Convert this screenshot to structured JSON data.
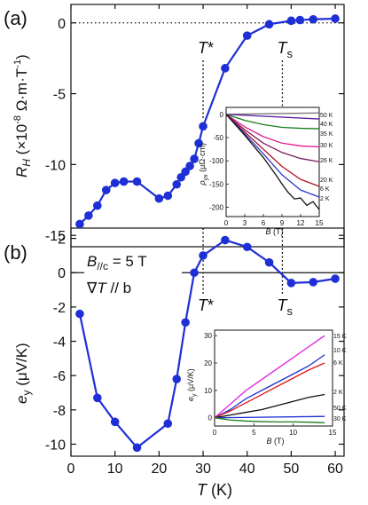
{
  "chart_data": [
    {
      "panel_label": "(a)",
      "type": "line",
      "x": [
        2,
        4,
        6,
        8,
        10,
        12,
        15,
        20,
        22,
        24,
        25,
        26,
        27,
        28,
        29,
        30,
        35,
        40,
        45,
        50,
        52,
        55,
        60
      ],
      "y": [
        -14.2,
        -13.6,
        -12.9,
        -11.8,
        -11.3,
        -11.2,
        -11.2,
        -12.4,
        -12.2,
        -11.4,
        -10.9,
        -10.5,
        -10.1,
        -9.6,
        -8.5,
        -7.3,
        -3.2,
        -0.9,
        -0.1,
        0.15,
        0.2,
        0.25,
        0.3
      ],
      "xlim": [
        0,
        62
      ],
      "ylim": [
        -15.8,
        1.3
      ],
      "yticks": [
        -15,
        -10,
        -5,
        0
      ],
      "ylabel": "R_H (×10^-8 Ω·m·T^-1)",
      "zero_line": "dotted",
      "markers": [
        {
          "label": "T*",
          "x": 30
        },
        {
          "label": "T_s",
          "x": 48
        }
      ],
      "inset": {
        "type": "line",
        "xlabel": "B (T)",
        "ylabel": "ρ_yx (μΩ·cm)",
        "xlim": [
          0,
          15
        ],
        "ylim": [
          -220,
          15
        ],
        "xticks": [
          0,
          3,
          6,
          9,
          12,
          15
        ],
        "yticks": [
          0,
          -50,
          -100,
          -150,
          -200
        ],
        "series": [
          {
            "name": "50 K",
            "color": "#6e6e6e",
            "x": [
              0,
              15
            ],
            "y": [
              0,
              3
            ]
          },
          {
            "name": "40 K",
            "color": "#5a1f9c",
            "x": [
              0,
              15
            ],
            "y": [
              0,
              -10
            ]
          },
          {
            "name": "35 K",
            "color": "#1a7a1a",
            "x": [
              0,
              3,
              6,
              9,
              12,
              15
            ],
            "y": [
              0,
              -13,
              -22,
              -28,
              -30,
              -31
            ]
          },
          {
            "name": "30 K",
            "color": "#e0188c",
            "x": [
              0,
              3,
              6,
              9,
              12,
              15
            ],
            "y": [
              0,
              -27,
              -48,
              -62,
              -68,
              -70
            ]
          },
          {
            "name": "26 K",
            "color": "#7a1c5e",
            "x": [
              0,
              3,
              6,
              9,
              12,
              15
            ],
            "y": [
              0,
              -33,
              -62,
              -82,
              -95,
              -102
            ]
          },
          {
            "name": "20 K",
            "color": "#b0132a",
            "x": [
              0,
              3,
              6,
              9,
              12,
              15
            ],
            "y": [
              0,
              -38,
              -75,
              -112,
              -140,
              -155
            ]
          },
          {
            "name": "6 K",
            "color": "#2c39c8",
            "x": [
              0,
              3,
              6,
              9,
              12,
              15
            ],
            "y": [
              0,
              -42,
              -85,
              -130,
              -163,
              -178
            ]
          },
          {
            "name": "2 K",
            "color": "#111111",
            "x": [
              0,
              3,
              6,
              8,
              9,
              10,
              11,
              12,
              13,
              14,
              15
            ],
            "y": [
              0,
              -45,
              -93,
              -130,
              -150,
              -168,
              -182,
              -180,
              -196,
              -188,
              -205
            ]
          }
        ]
      }
    },
    {
      "panel_label": "(b)",
      "type": "line",
      "x": [
        2,
        6,
        10,
        15,
        22,
        24,
        26,
        28,
        30,
        35,
        40,
        45,
        50,
        55,
        60
      ],
      "y": [
        -2.4,
        -7.3,
        -8.7,
        -10.2,
        -8.8,
        -6.2,
        -2.9,
        0.0,
        1.0,
        1.9,
        1.5,
        0.6,
        -0.6,
        -0.55,
        -0.35
      ],
      "xlim": [
        0,
        62
      ],
      "ylim": [
        -10.7,
        2.6
      ],
      "xticks": [
        0,
        10,
        20,
        30,
        40,
        50,
        60
      ],
      "yticks": [
        -10,
        -8,
        -6,
        -4,
        -2,
        0,
        2
      ],
      "xlabel": "T (K)",
      "ylabel": "e_y (μV/K)",
      "zero_line": "solid",
      "annotations": [
        "B//c = 5 T",
        "∇T // b"
      ],
      "markers": [
        {
          "label": "T*",
          "x": 30
        },
        {
          "label": "T_s",
          "x": 48
        }
      ],
      "inset": {
        "type": "line",
        "xlabel": "B (T)",
        "ylabel": "e_y (μV/K)",
        "xlim": [
          0,
          15
        ],
        "ylim": [
          -3,
          32
        ],
        "xticks": [
          0,
          5,
          10,
          15
        ],
        "yticks": [
          0,
          10,
          20,
          30
        ],
        "series": [
          {
            "name": "15 K",
            "color": "#e01ae0",
            "x": [
              0,
              2,
              4,
              6,
              8,
              10,
              12,
              14
            ],
            "y": [
              0,
              5,
              10,
              14,
              18,
              22,
              26,
              30
            ]
          },
          {
            "name": "10 K",
            "color": "#1c2fd0",
            "x": [
              0,
              2,
              4,
              6,
              8,
              10,
              12,
              14
            ],
            "y": [
              0,
              3,
              7,
              10,
              13,
              16,
              19,
              23
            ]
          },
          {
            "name": "6 K",
            "color": "#e01818",
            "x": [
              0,
              2,
              4,
              6,
              8,
              10,
              12,
              14
            ],
            "y": [
              0,
              2.5,
              5.5,
              8.5,
              11.5,
              14.5,
              17.5,
              20
            ]
          },
          {
            "name": "2 K",
            "color": "#111111",
            "x": [
              0,
              2,
              4,
              6,
              8,
              10,
              12,
              14
            ],
            "y": [
              0,
              1,
              2,
              3,
              4.5,
              6,
              7.5,
              8.5
            ]
          },
          {
            "name": "50 K",
            "color": "#1c2fd0",
            "x": [
              0,
              14
            ],
            "y": [
              0,
              0.5
            ]
          },
          {
            "name": "30 K",
            "color": "#1a7a1a",
            "x": [
              0,
              2,
              4,
              6,
              8,
              10,
              12,
              14
            ],
            "y": [
              0,
              -0.8,
              -1.2,
              -1.4,
              -1.5,
              -1.5,
              -1.6,
              -1.8
            ]
          }
        ]
      }
    }
  ]
}
